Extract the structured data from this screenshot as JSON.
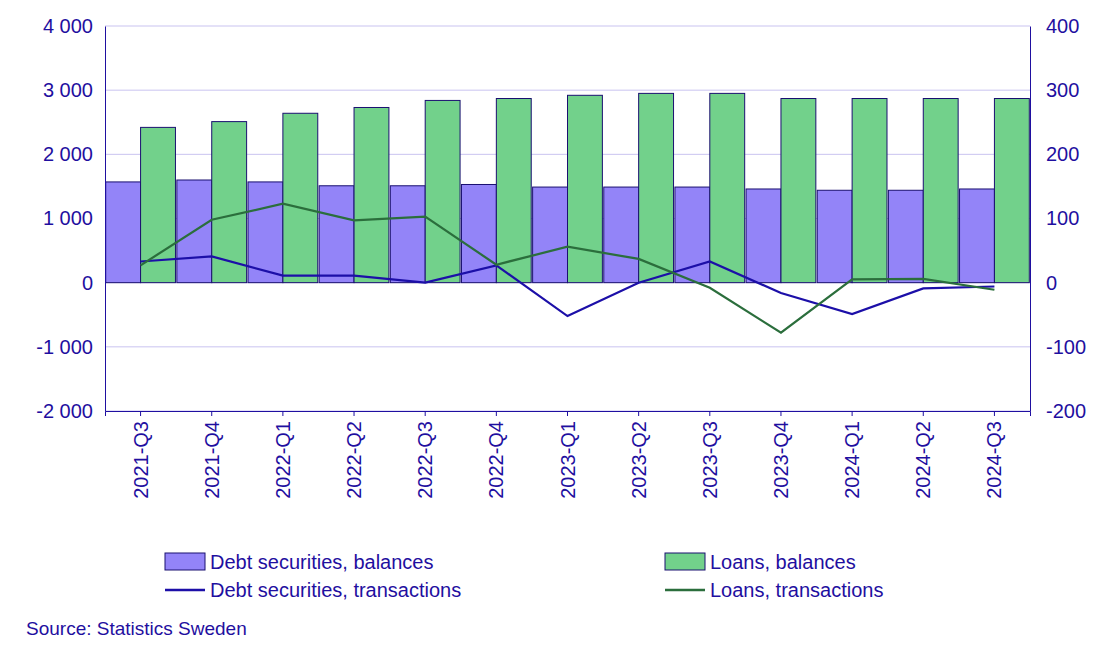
{
  "chart_data": {
    "type": "bar",
    "source": "Source: Statistics Sweden",
    "categories": [
      "2021-Q3",
      "2021-Q4",
      "2022-Q1",
      "2022-Q2",
      "2022-Q3",
      "2022-Q4",
      "2023-Q1",
      "2023-Q2",
      "2023-Q3",
      "2023-Q4",
      "2024-Q1",
      "2024-Q2",
      "2024-Q3"
    ],
    "series": [
      {
        "name": "Debt securities, balances",
        "type": "bar",
        "color": "#9384f8",
        "values": [
          1570,
          1600,
          1570,
          1510,
          1510,
          1530,
          1490,
          1490,
          1490,
          1460,
          1440,
          1440,
          1460
        ]
      },
      {
        "name": "Loans, balances",
        "type": "bar",
        "color": "#72d18b",
        "values": [
          2420,
          2510,
          2640,
          2730,
          2840,
          2870,
          2920,
          2950,
          2950,
          2870,
          2870,
          2870,
          2870
        ]
      },
      {
        "name": "Debt securities, transactions",
        "type": "line",
        "axis": "y2",
        "color": "#1c0fa8",
        "values": [
          33,
          41,
          11,
          11,
          0,
          27,
          -52,
          0,
          33,
          -16,
          -49,
          -9,
          -6
        ]
      },
      {
        "name": "Loans, transactions",
        "type": "line",
        "axis": "y2",
        "color": "#2b6e3c",
        "values": [
          27,
          98,
          123,
          97,
          103,
          28,
          56,
          37,
          -8,
          -78,
          5,
          6,
          -11
        ]
      }
    ],
    "ylim": [
      -2000,
      4000
    ],
    "yticks": [
      {
        "value": -2000,
        "label": "-2 000"
      },
      {
        "value": -1000,
        "label": "-1 000"
      },
      0,
      {
        "value": 1000,
        "label": "1 000"
      },
      {
        "value": 2000,
        "label": "2 000"
      },
      {
        "value": 3000,
        "label": "3 000"
      },
      {
        "value": 4000,
        "label": "4 000"
      }
    ],
    "y2lim": [
      -200,
      400
    ],
    "y2ticks": [
      -200,
      -100,
      0,
      100,
      200,
      300,
      400
    ],
    "grid": true
  }
}
